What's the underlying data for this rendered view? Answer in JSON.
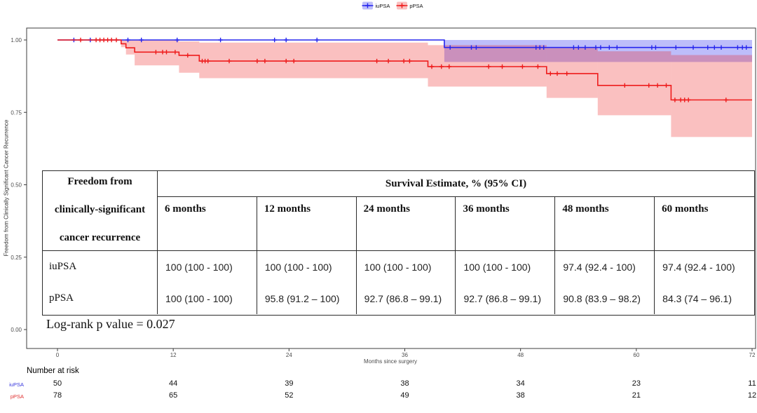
{
  "legend": {
    "items": [
      {
        "label": "iuPSA",
        "color": "#2525EE"
      },
      {
        "label": "pPSA",
        "color": "#EE1C1C"
      }
    ]
  },
  "axes": {
    "y_label": "Freedom from Clinically Significant Cancer Recurrence",
    "x_label": "Months since surgery",
    "y_ticks": [
      "1.00",
      "0.75",
      "0.50",
      "0.25",
      "0.00"
    ],
    "x_ticks": [
      "0",
      "12",
      "24",
      "36",
      "48",
      "60",
      "72"
    ]
  },
  "chart_data": {
    "type": "line",
    "subtype": "kaplan-meier-step",
    "xlabel": "Months since surgery",
    "ylabel": "Freedom from Clinically Significant Cancer Recurrence",
    "xlim": [
      0,
      72
    ],
    "ylim": [
      0,
      1
    ],
    "xticks": [
      0,
      12,
      24,
      36,
      48,
      60,
      72
    ],
    "yticks": [
      1,
      0.75,
      0.5,
      0.25,
      0
    ],
    "legend_position": "top-center",
    "grid": false,
    "series": [
      {
        "name": "iuPSA",
        "color": "#2525EE",
        "band_color": "rgba(37,37,238,0.30)",
        "steps": [
          [
            0,
            1
          ],
          [
            40.1,
            1
          ],
          [
            40.1,
            0.974
          ],
          [
            72,
            0.974
          ]
        ],
        "censors": [
          [
            1.7,
            1
          ],
          [
            3.4,
            1
          ],
          [
            7.3,
            1
          ],
          [
            8.7,
            1
          ],
          [
            12.4,
            1
          ],
          [
            16.9,
            1
          ],
          [
            22.5,
            1
          ],
          [
            23.7,
            1
          ],
          [
            26.9,
            1
          ],
          [
            40.7,
            0.974
          ],
          [
            42.9,
            0.974
          ],
          [
            43.4,
            0.974
          ],
          [
            49.6,
            0.974
          ],
          [
            50.0,
            0.974
          ],
          [
            50.4,
            0.974
          ],
          [
            53.5,
            0.974
          ],
          [
            54.0,
            0.974
          ],
          [
            54.7,
            0.974
          ],
          [
            55.8,
            0.974
          ],
          [
            56.3,
            0.974
          ],
          [
            57.2,
            0.974
          ],
          [
            58.0,
            0.974
          ],
          [
            61.6,
            0.974
          ],
          [
            62.0,
            0.974
          ],
          [
            64.1,
            0.974
          ],
          [
            65.9,
            0.974
          ],
          [
            67.4,
            0.974
          ],
          [
            68.1,
            0.974
          ],
          [
            68.8,
            0.974
          ],
          [
            70.5,
            0.974
          ],
          [
            71.0,
            0.974
          ],
          [
            71.4,
            0.974
          ]
        ],
        "band": [
          {
            "x0": 40.1,
            "x1": 72,
            "lo": 0.924,
            "hi": 1.0
          }
        ]
      },
      {
        "name": "pPSA",
        "color": "#EE1C1C",
        "band_color": "rgba(238,28,28,0.28)",
        "steps": [
          [
            0,
            1
          ],
          [
            6.6,
            1
          ],
          [
            6.6,
            0.987
          ],
          [
            7.1,
            0.987
          ],
          [
            7.1,
            0.973
          ],
          [
            8.0,
            0.973
          ],
          [
            8.0,
            0.958
          ],
          [
            12.6,
            0.958
          ],
          [
            12.6,
            0.947
          ],
          [
            14.7,
            0.947
          ],
          [
            14.7,
            0.927
          ],
          [
            38.4,
            0.927
          ],
          [
            38.4,
            0.908
          ],
          [
            50.7,
            0.908
          ],
          [
            50.7,
            0.884
          ],
          [
            56,
            0.884
          ],
          [
            56,
            0.843
          ],
          [
            63.6,
            0.843
          ],
          [
            63.6,
            0.793
          ],
          [
            72,
            0.793
          ]
        ],
        "censors": [
          [
            2.4,
            1
          ],
          [
            4.0,
            1
          ],
          [
            4.4,
            1
          ],
          [
            4.8,
            1
          ],
          [
            5.2,
            1
          ],
          [
            5.6,
            1
          ],
          [
            6.1,
            1
          ],
          [
            10.2,
            0.958
          ],
          [
            10.9,
            0.958
          ],
          [
            11.3,
            0.958
          ],
          [
            12.2,
            0.958
          ],
          [
            13.5,
            0.947
          ],
          [
            15.0,
            0.927
          ],
          [
            15.3,
            0.927
          ],
          [
            15.6,
            0.927
          ],
          [
            17.8,
            0.927
          ],
          [
            20.7,
            0.927
          ],
          [
            21.5,
            0.927
          ],
          [
            23.7,
            0.927
          ],
          [
            24.5,
            0.927
          ],
          [
            33.1,
            0.927
          ],
          [
            34.3,
            0.927
          ],
          [
            35.9,
            0.927
          ],
          [
            36.5,
            0.927
          ],
          [
            38.8,
            0.908
          ],
          [
            39.8,
            0.908
          ],
          [
            40.6,
            0.908
          ],
          [
            44.7,
            0.908
          ],
          [
            46.1,
            0.908
          ],
          [
            48.2,
            0.908
          ],
          [
            49.8,
            0.908
          ],
          [
            51.1,
            0.884
          ],
          [
            51.8,
            0.884
          ],
          [
            52.8,
            0.884
          ],
          [
            58.8,
            0.843
          ],
          [
            61.3,
            0.843
          ],
          [
            62.2,
            0.843
          ],
          [
            63.1,
            0.843
          ],
          [
            64.0,
            0.793
          ],
          [
            64.6,
            0.793
          ],
          [
            65.0,
            0.793
          ],
          [
            65.4,
            0.793
          ],
          [
            69.3,
            0.793
          ]
        ],
        "band": [
          {
            "x0": 6.6,
            "x1": 7.1,
            "lo": 0.975,
            "hi": 1.0
          },
          {
            "x0": 7.1,
            "x1": 8.0,
            "lo": 0.95,
            "hi": 1.0
          },
          {
            "x0": 8.0,
            "x1": 12.6,
            "lo": 0.912,
            "hi": 1.0
          },
          {
            "x0": 12.6,
            "x1": 14.7,
            "lo": 0.887,
            "hi": 0.995
          },
          {
            "x0": 14.7,
            "x1": 38.4,
            "lo": 0.868,
            "hi": 0.991
          },
          {
            "x0": 38.4,
            "x1": 50.7,
            "lo": 0.839,
            "hi": 0.982
          },
          {
            "x0": 50.7,
            "x1": 56,
            "lo": 0.8,
            "hi": 0.972
          },
          {
            "x0": 56,
            "x1": 63.6,
            "lo": 0.74,
            "hi": 0.961
          },
          {
            "x0": 63.6,
            "x1": 72,
            "lo": 0.665,
            "hi": 0.948
          }
        ]
      }
    ]
  },
  "summary_table": {
    "row_header_lines": [
      "Freedom from",
      "clinically-significant",
      "cancer recurrence"
    ],
    "span_header": "Survival Estimate, % (95% CI)",
    "columns": [
      "6 months",
      "12 months",
      "24 months",
      "36 months",
      "48 months",
      "60 months"
    ],
    "rows": [
      {
        "label": "iuPSA",
        "values": [
          "100 (100 - 100)",
          "100 (100 - 100)",
          "100 (100 - 100)",
          "100 (100 - 100)",
          "97.4 (92.4 - 100)",
          "97.4 (92.4 - 100)"
        ]
      },
      {
        "label": "pPSA",
        "values": [
          "100 (100 - 100)",
          "95.8 (91.2 – 100)",
          "92.7 (86.8 – 99.1)",
          "92.7 (86.8 – 99.1)",
          "90.8 (83.9 – 98.2)",
          "84.3 (74 – 96.1)"
        ]
      }
    ]
  },
  "annotations": {
    "log_rank": "Log-rank p value = 0.027"
  },
  "number_at_risk": {
    "label": "Number at risk",
    "times": [
      0,
      12,
      24,
      36,
      48,
      60,
      72
    ],
    "rows": [
      {
        "name": "iuPSA",
        "color": "#3535dd",
        "counts": [
          "50",
          "44",
          "39",
          "38",
          "34",
          "23",
          "11"
        ]
      },
      {
        "name": "pPSA",
        "color": "#e03030",
        "counts": [
          "78",
          "65",
          "52",
          "49",
          "38",
          "21",
          "12"
        ]
      }
    ]
  }
}
